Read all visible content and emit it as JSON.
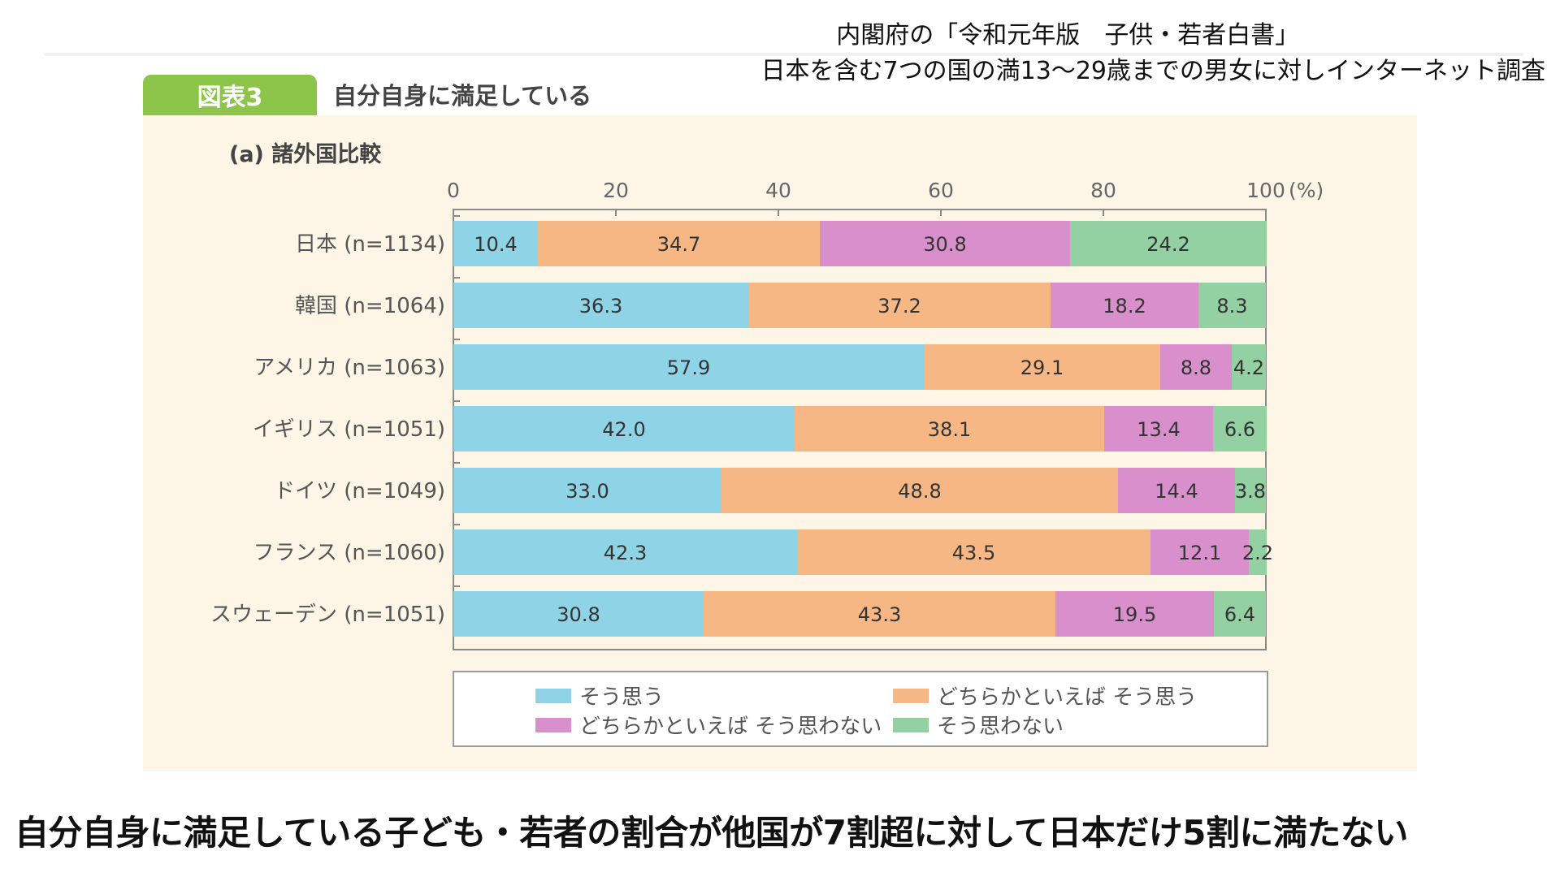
{
  "source": {
    "line1": "内閣府の「令和元年版　子供・若者白書」",
    "line2": "日本を含む7つの国の満13〜29歳までの男女に対しインターネット調査"
  },
  "figure": {
    "badge": "図表3",
    "title": "自分自身に満足している",
    "subtitle": "(a) 諸外国比較"
  },
  "headline": "自分自身に満足している子ども・若者の割合が他国が7割超に対して日本だけ5割に満たない",
  "chart_data": {
    "type": "bar",
    "orientation": "horizontal",
    "stacked": true,
    "x_ticks": [
      "0",
      "20",
      "40",
      "60",
      "80",
      "100"
    ],
    "x_unit": "(%)",
    "xlim": [
      0,
      100
    ],
    "categories": [
      "日本 (n=1134)",
      "韓国 (n=1064)",
      "アメリカ (n=1063)",
      "イギリス (n=1051)",
      "ドイツ (n=1049)",
      "フランス (n=1060)",
      "スウェーデン (n=1051)"
    ],
    "series": [
      {
        "name": "そう思う",
        "color": "#8fd3e6",
        "values": [
          10.4,
          36.3,
          57.9,
          42.0,
          33.0,
          42.3,
          30.8
        ]
      },
      {
        "name": "どちらかといえば そう思う",
        "color": "#f7b784",
        "values": [
          34.7,
          37.2,
          29.1,
          38.1,
          48.8,
          43.5,
          43.3
        ]
      },
      {
        "name": "どちらかといえば そう思わない",
        "color": "#d88fcb",
        "values": [
          30.8,
          18.2,
          8.8,
          13.4,
          14.4,
          12.1,
          19.5
        ]
      },
      {
        "name": "そう思わない",
        "color": "#94d1a2",
        "values": [
          24.2,
          8.3,
          4.2,
          6.6,
          3.8,
          2.2,
          6.4
        ]
      }
    ],
    "data_labels": [
      [
        "10.4",
        "34.7",
        "30.8",
        "24.2"
      ],
      [
        "36.3",
        "37.2",
        "18.2",
        "8.3"
      ],
      [
        "57.9",
        "29.1",
        "8.8",
        "4.2"
      ],
      [
        "42.0",
        "38.1",
        "13.4",
        "6.6"
      ],
      [
        "33.0",
        "48.8",
        "14.4",
        "3.8"
      ],
      [
        "42.3",
        "43.5",
        "12.1",
        "2.2"
      ],
      [
        "30.8",
        "43.3",
        "19.5",
        "6.4"
      ]
    ],
    "legend_position": "bottom"
  }
}
